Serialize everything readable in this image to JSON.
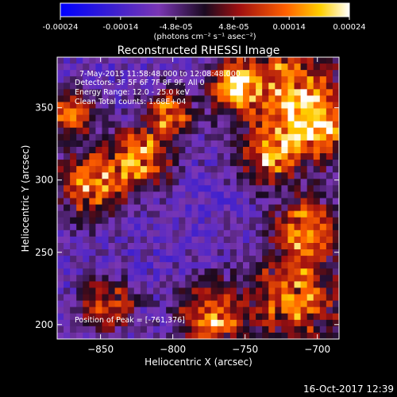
{
  "colorbar": {
    "tick_labels": [
      "-0.00024",
      "-0.00014",
      "-4.8e-05",
      "4.8e-05",
      "0.00014",
      "0.00024"
    ],
    "unit_label": "(photons cm⁻² s⁻¹ asec⁻²)",
    "range": [
      -0.00024,
      0.00024
    ]
  },
  "annotation": {
    "time_range": "7-May-2015 11:58:48.000 to 12:08:48.000",
    "detectors": "Detectors: 3F 5F 6F 7F 8F 9F, All 0",
    "energy": "Energy Range: 12.0 - 25.0 keV",
    "method": "Clean      Total counts: 1.68E+04",
    "peak": "Position of Peak = [-761,376]"
  },
  "footer": {
    "timestamp": "16-Oct-2017 12:39"
  },
  "chart_data": {
    "type": "heatmap",
    "title": "Reconstructed RHESSI Image",
    "xlabel": "Heliocentric X (arcsec)",
    "ylabel": "Heliocentric Y (arcsec)",
    "xlim": [
      -880,
      -685
    ],
    "ylim": [
      190,
      385
    ],
    "x_ticks": [
      -850,
      -800,
      -750,
      -700
    ],
    "y_ticks": [
      200,
      250,
      300,
      350
    ],
    "grid": false,
    "colormap": "blue-purple-red-yellow-white",
    "peak_position": [
      -761,
      376
    ]
  }
}
